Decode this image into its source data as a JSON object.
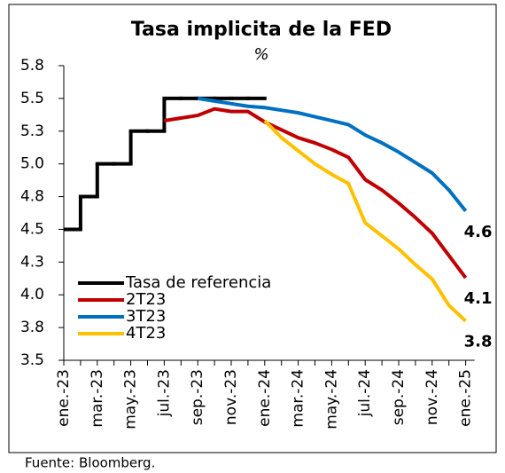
{
  "chart_data": {
    "type": "line",
    "title": "Tasa implicita de la FED",
    "subtitle": "%",
    "source": "Fuente: Bloomberg.",
    "categories": [
      "ene.-23",
      null,
      "mar.-23",
      null,
      "may.-23",
      null,
      "jul.-23",
      null,
      "sep.-23",
      null,
      "nov.-23",
      null,
      "ene.-24",
      null,
      "mar.-24",
      null,
      "may.-24",
      null,
      "jul.-24",
      null,
      "sep.-24",
      null,
      "nov.-24",
      null,
      "ene.-25"
    ],
    "ylim": [
      3.5,
      5.75
    ],
    "yticks": [
      3.5,
      {
        "value": 3.75,
        "label": "3.8"
      },
      {
        "value": 4.0,
        "label": "4.0"
      },
      {
        "value": 4.25,
        "label": "4.3"
      },
      4.5,
      {
        "value": 4.75,
        "label": "4.8"
      },
      {
        "value": 5.0,
        "label": "5.0"
      },
      {
        "value": 5.25,
        "label": "5.3"
      },
      5.5,
      {
        "value": 5.75,
        "label": "5.8"
      }
    ],
    "legend": "lower left",
    "series": [
      {
        "name": "Tasa de referencia",
        "color": "#000000",
        "step": true,
        "values": [
          4.5,
          4.75,
          5.0,
          5.0,
          5.25,
          5.25,
          5.5,
          5.5,
          5.5,
          5.5,
          5.5,
          5.5,
          null,
          null,
          null,
          null,
          null,
          null,
          null,
          null,
          null,
          null,
          null,
          null,
          null
        ]
      },
      {
        "name": "2T23",
        "color": "#c00000",
        "values": [
          null,
          null,
          null,
          null,
          null,
          null,
          5.33,
          5.35,
          5.37,
          5.42,
          5.4,
          5.4,
          5.32,
          5.26,
          5.2,
          5.16,
          5.11,
          5.05,
          4.88,
          4.8,
          4.7,
          4.59,
          4.47,
          4.3,
          4.13
        ],
        "value_labels": [
          null,
          null,
          null,
          null,
          null,
          null,
          null,
          null,
          null,
          null,
          null,
          null,
          null,
          null,
          null,
          null,
          null,
          null,
          null,
          null,
          null,
          null,
          null,
          null,
          "4.1"
        ]
      },
      {
        "name": "3T23",
        "color": "#0070c0",
        "values": [
          null,
          null,
          null,
          null,
          null,
          null,
          null,
          null,
          5.5,
          5.48,
          5.46,
          5.44,
          5.43,
          5.41,
          5.39,
          5.36,
          5.33,
          5.3,
          5.22,
          5.16,
          5.09,
          5.01,
          4.93,
          4.8,
          4.64
        ],
        "value_labels": [
          null,
          null,
          null,
          null,
          null,
          null,
          null,
          null,
          null,
          null,
          null,
          null,
          null,
          null,
          null,
          null,
          null,
          null,
          null,
          null,
          null,
          null,
          null,
          null,
          "4.6"
        ]
      },
      {
        "name": "4T23",
        "color": "#ffc000",
        "values": [
          null,
          null,
          null,
          null,
          null,
          null,
          null,
          null,
          null,
          null,
          null,
          null,
          5.33,
          5.2,
          5.1,
          5.0,
          4.92,
          4.85,
          4.55,
          4.45,
          4.35,
          4.23,
          4.12,
          3.92,
          3.8
        ],
        "value_labels": [
          null,
          null,
          null,
          null,
          null,
          null,
          null,
          null,
          null,
          null,
          null,
          null,
          null,
          null,
          null,
          null,
          null,
          null,
          null,
          null,
          null,
          null,
          null,
          null,
          "3.8"
        ]
      }
    ]
  }
}
